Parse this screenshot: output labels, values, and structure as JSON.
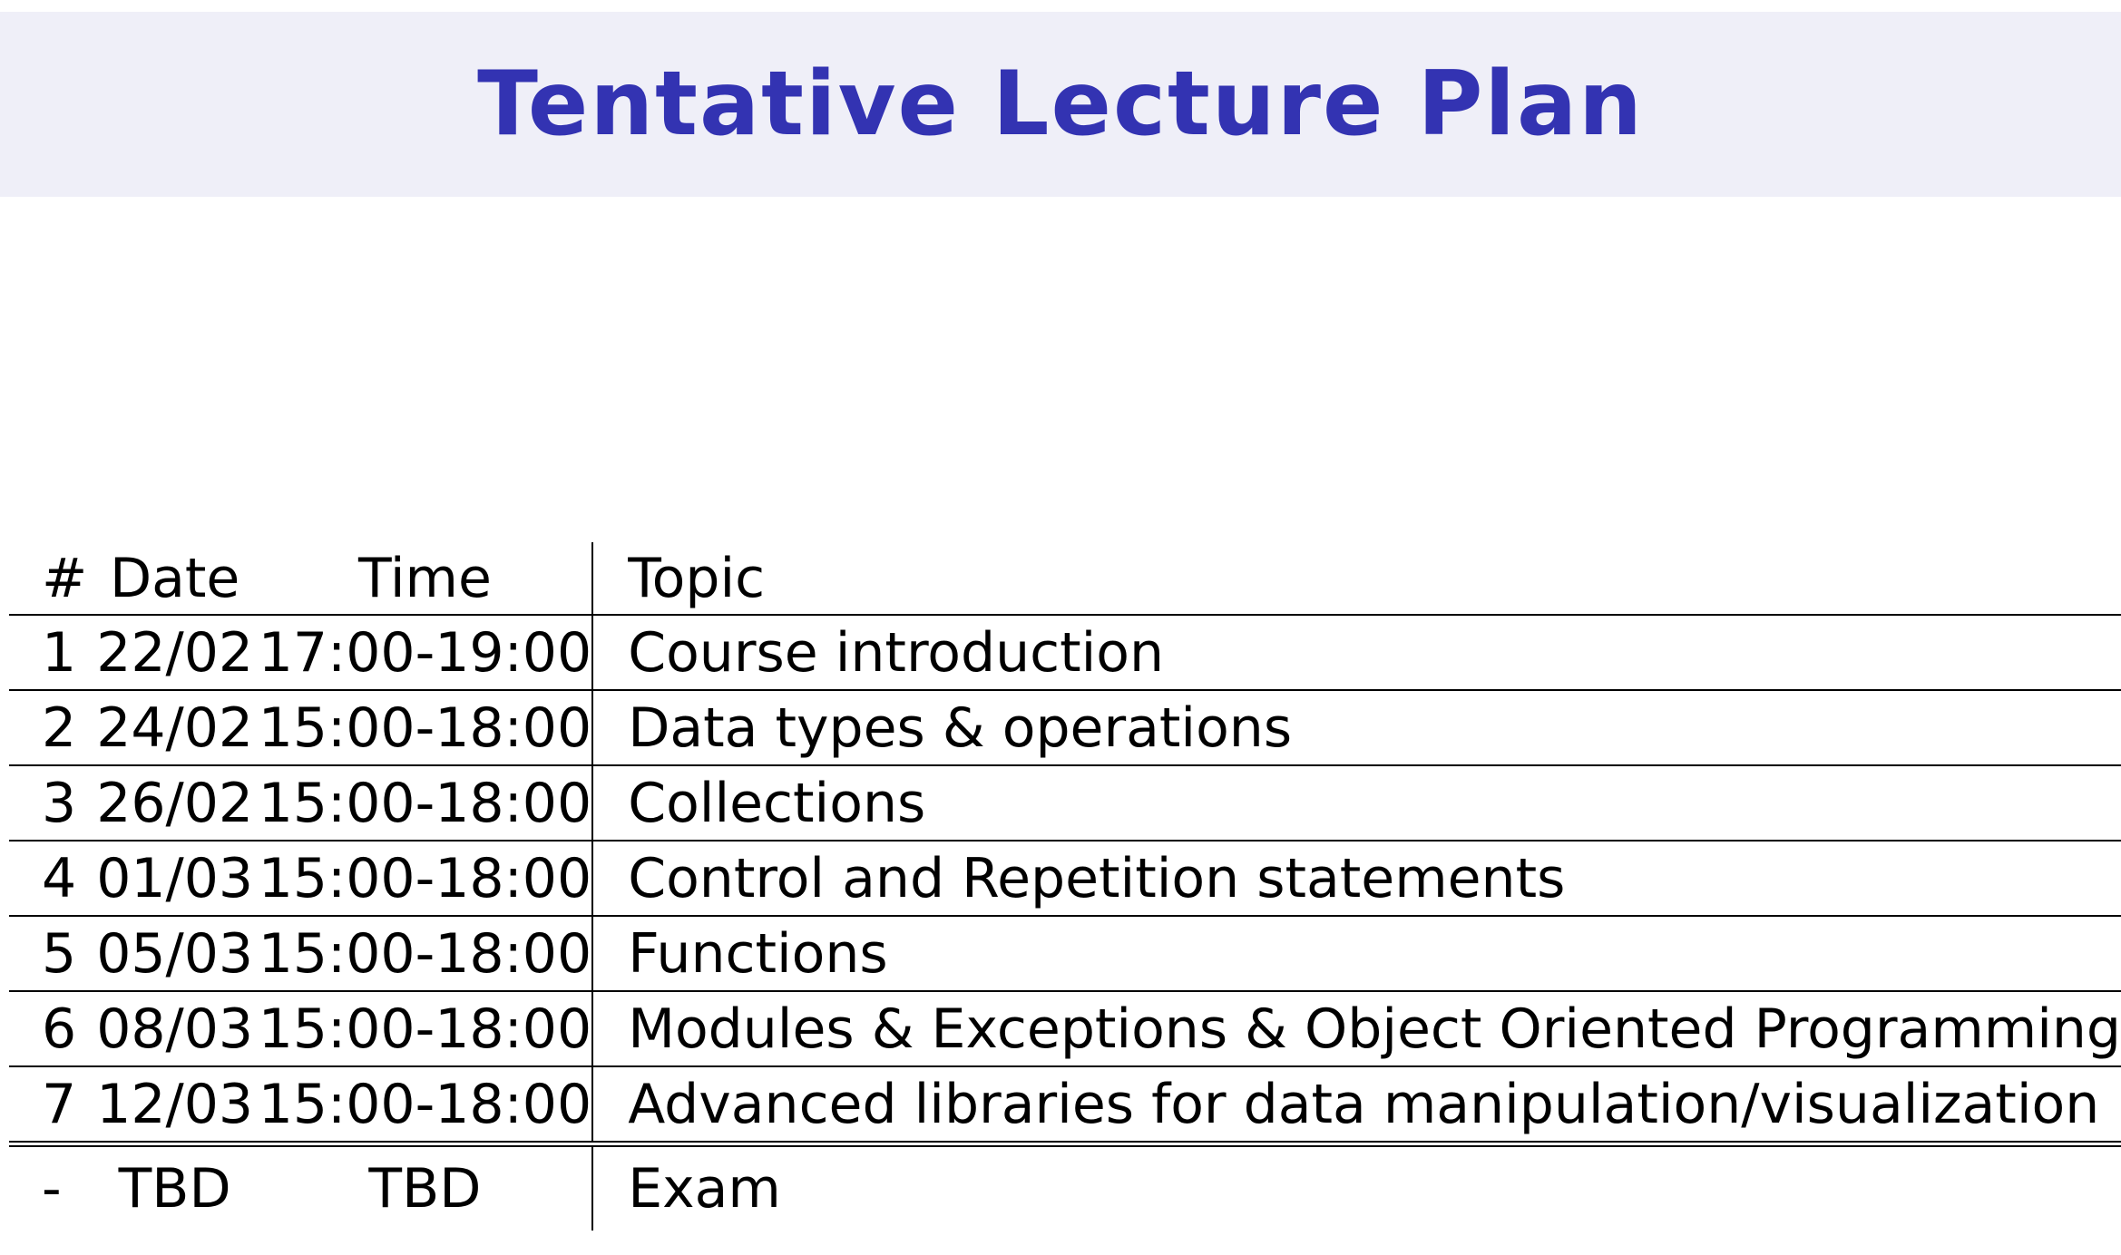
{
  "slide": {
    "title": "Tentative Lecture Plan"
  },
  "colors": {
    "title_text": "#3333b2",
    "title_background": "#efeff8",
    "table_rules": "#000000"
  },
  "table": {
    "headers": {
      "number": "#",
      "date": "Date",
      "time": "Time",
      "topic": "Topic"
    },
    "rows": [
      {
        "number": "1",
        "date": "22/02",
        "time": "17:00-19:00",
        "topic": "Course introduction"
      },
      {
        "number": "2",
        "date": "24/02",
        "time": "15:00-18:00",
        "topic": "Data types & operations"
      },
      {
        "number": "3",
        "date": "26/02",
        "time": "15:00-18:00",
        "topic": "Collections"
      },
      {
        "number": "4",
        "date": "01/03",
        "time": "15:00-18:00",
        "topic": "Control and Repetition statements"
      },
      {
        "number": "5",
        "date": "05/03",
        "time": "15:00-18:00",
        "topic": "Functions"
      },
      {
        "number": "6",
        "date": "08/03",
        "time": "15:00-18:00",
        "topic": "Modules & Exceptions & Object Oriented Programming"
      },
      {
        "number": "7",
        "date": "12/03",
        "time": "15:00-18:00",
        "topic": "Advanced libraries for data manipulation/visualization"
      }
    ],
    "exam": {
      "number": "-",
      "date": "TBD",
      "time": "TBD",
      "topic": "Exam"
    }
  }
}
